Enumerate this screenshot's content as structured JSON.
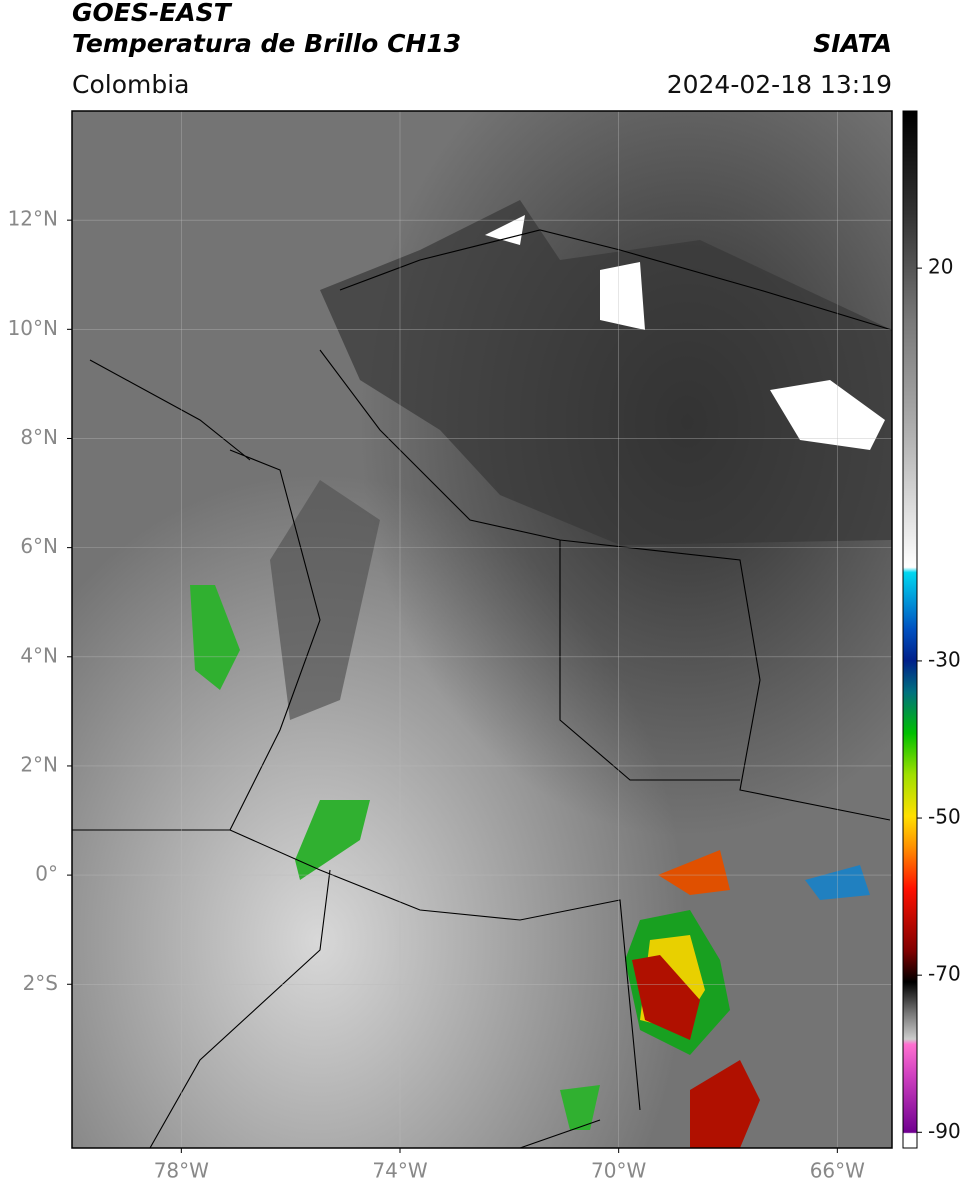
{
  "chart_data": {
    "type": "map",
    "title": "GOES-EAST",
    "subtitle": "Temperatura de Brillo CH13",
    "source": "SIATA",
    "region": "Colombia",
    "datetime": "2024-02-18 13:19",
    "xlim": [
      -80,
      -65
    ],
    "ylim": [
      -5,
      14
    ],
    "xticks": [
      {
        "value": -78,
        "label": "78°W"
      },
      {
        "value": -74,
        "label": "74°W"
      },
      {
        "value": -70,
        "label": "70°W"
      },
      {
        "value": -66,
        "label": "66°W"
      }
    ],
    "yticks": [
      {
        "value": 12,
        "label": "12°N"
      },
      {
        "value": 10,
        "label": "10°N"
      },
      {
        "value": 8,
        "label": "8°N"
      },
      {
        "value": 6,
        "label": "6°N"
      },
      {
        "value": 4,
        "label": "4°N"
      },
      {
        "value": 2,
        "label": "2°N"
      },
      {
        "value": 0,
        "label": "0°"
      },
      {
        "value": -2,
        "label": "2°S"
      }
    ],
    "grid": true,
    "colorbar": {
      "lim": [
        -92,
        40
      ],
      "ticks": [
        20,
        -30,
        -50,
        -70,
        -90
      ]
    }
  }
}
